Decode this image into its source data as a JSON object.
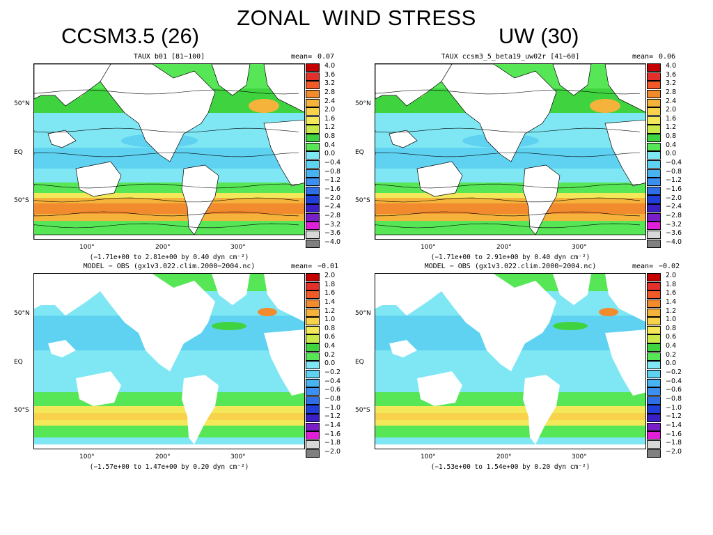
{
  "slide": {
    "title": "ZONAL  WIND STRESS",
    "left_heading": "CCSM3.5 (26)",
    "right_heading": "UW (30)"
  },
  "colorbars": {
    "taux": {
      "labels": [
        "4.0",
        "3.6",
        "3.2",
        "2.8",
        "2.4",
        "2.0",
        "1.6",
        "1.2",
        "0.8",
        "0.4",
        "0.0",
        "−0.4",
        "−0.8",
        "−1.2",
        "−1.6",
        "−2.0",
        "−2.4",
        "−2.8",
        "−3.2",
        "−3.6",
        "−4.0"
      ],
      "colors": [
        "#c40000",
        "#e4302a",
        "#f05a28",
        "#f28a2e",
        "#f5b33b",
        "#f7d24a",
        "#f2e85a",
        "#c9e84a",
        "#3fd43f",
        "#56e656",
        "#7fe7f4",
        "#5fd2f2",
        "#48b3f0",
        "#3a8ff0",
        "#2f6fe6",
        "#1f3fd8",
        "#3b1fc6",
        "#7a1fc8",
        "#e020d8",
        "#d8d8d8",
        "#808080"
      ]
    },
    "diff": {
      "labels": [
        "2.0",
        "1.8",
        "1.6",
        "1.4",
        "1.2",
        "1.0",
        "0.8",
        "0.6",
        "0.4",
        "0.2",
        "0.0",
        "−0.2",
        "−0.4",
        "−0.6",
        "−0.8",
        "−1.0",
        "−1.2",
        "−1.4",
        "−1.6",
        "−1.8",
        "−2.0"
      ],
      "colors": [
        "#c40000",
        "#e4302a",
        "#f05a28",
        "#f28a2e",
        "#f5b33b",
        "#f7d24a",
        "#f2e85a",
        "#c9e84a",
        "#3fd43f",
        "#56e656",
        "#7fe7f4",
        "#5fd2f2",
        "#48b3f0",
        "#3a8ff0",
        "#2f6fe6",
        "#1f3fd8",
        "#3b1fc6",
        "#7a1fc8",
        "#e020d8",
        "#d8d8d8",
        "#808080"
      ]
    }
  },
  "axes": {
    "y_labels": [
      "50°N",
      "EQ",
      "50°S"
    ],
    "x_labels": [
      "100°",
      "200°",
      "300°"
    ]
  },
  "panels": {
    "top_left": {
      "title": "TAUX b01 [81−100]",
      "mean_label": "mean=",
      "mean_value": "0.07",
      "range": "(−1.71e+00 to  2.81e+00 by   0.40 dyn cm⁻²)"
    },
    "top_right": {
      "title": "TAUX ccsm3_5_beta19_uw02r [41−60]",
      "mean_label": "mean=",
      "mean_value": "0.06",
      "range": "(−1.71e+00 to  2.91e+00 by   0.40 dyn cm⁻²)"
    },
    "bottom_left": {
      "title": "MODEL − OBS (gx1v3.022.clim.2000−2004.nc)",
      "mean_label": "mean=",
      "mean_value": "−0.01",
      "range": "(−1.57e+00 to  1.47e+00 by   0.20 dyn cm⁻²)"
    },
    "bottom_right": {
      "title": "MODEL − OBS (gx1v3.022.clim.2000−2004.nc)",
      "mean_label": "mean=",
      "mean_value": "−0.02",
      "range": "(−1.53e+00 to  1.54e+00 by   0.20 dyn cm⁻²)"
    }
  }
}
